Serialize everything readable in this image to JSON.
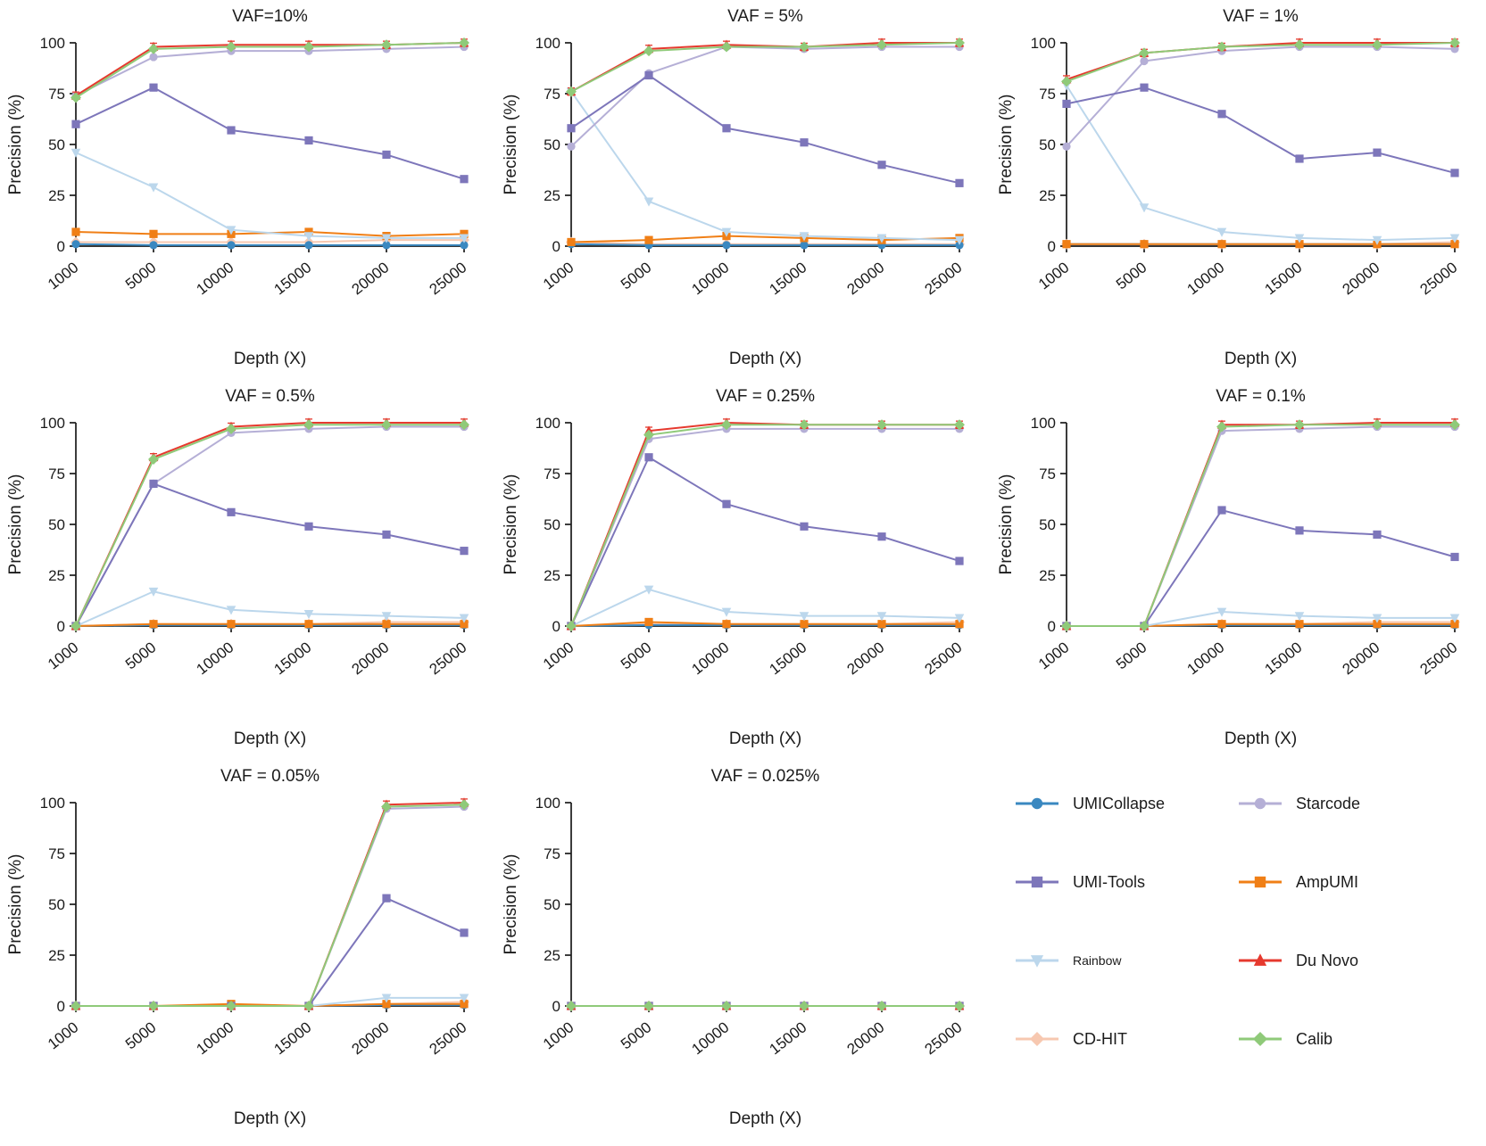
{
  "figure": {
    "xlabel": "Depth (X)",
    "ylabel": "Precision (%)"
  },
  "chart_data": {
    "type": "line",
    "x": [
      1000,
      5000,
      10000,
      15000,
      20000,
      25000
    ],
    "x_tick_labels": [
      "1000",
      "5000",
      "10000",
      "15000",
      "20000",
      "25000"
    ],
    "xlabel": "Depth (X)",
    "ylabel": "Precision (%)",
    "ylim": [
      0,
      100
    ],
    "yticks": [
      0,
      25,
      50,
      75,
      100
    ],
    "grid": false,
    "legend_position": "bottom-right cell, 2 columns",
    "series_meta": [
      {
        "name": "UMICollapse",
        "color": "#3a88c0",
        "marker": "circle"
      },
      {
        "name": "Starcode",
        "color": "#b5afd6",
        "marker": "circle"
      },
      {
        "name": "UMI-Tools",
        "color": "#7d76ba",
        "marker": "square"
      },
      {
        "name": "AmpUMI",
        "color": "#f07f16",
        "marker": "square"
      },
      {
        "name": "Rainbow",
        "color": "#bcd7ec",
        "marker": "triangle-down"
      },
      {
        "name": "Du Novo",
        "color": "#e6392e",
        "marker": "triangle-up"
      },
      {
        "name": "CD-HIT",
        "color": "#f7c8b0",
        "marker": "diamond"
      },
      {
        "name": "Calib",
        "color": "#8fca79",
        "marker": "diamond"
      }
    ],
    "draw_order": [
      "CD-HIT",
      "UMICollapse",
      "AmpUMI",
      "Rainbow",
      "Starcode",
      "UMI-Tools",
      "Du Novo",
      "Calib"
    ],
    "error_bars": {
      "Du Novo": 1.8
    },
    "panels": [
      {
        "title": "VAF=10%",
        "series": {
          "UMICollapse": [
            1,
            0.5,
            0.5,
            0.5,
            0.5,
            0.5
          ],
          "Starcode": [
            74,
            93,
            96,
            96,
            97,
            98
          ],
          "UMI-Tools": [
            60,
            78,
            57,
            52,
            45,
            33
          ],
          "AmpUMI": [
            7,
            6,
            6,
            7,
            5,
            6
          ],
          "Rainbow": [
            46,
            29,
            8,
            5,
            4,
            4
          ],
          "Du Novo": [
            74,
            98,
            99,
            99,
            99,
            100
          ],
          "CD-HIT": [
            2,
            2,
            2,
            2,
            3,
            3
          ],
          "Calib": [
            73,
            97,
            98,
            98,
            99,
            100
          ]
        }
      },
      {
        "title": "VAF = 5%",
        "series": {
          "UMICollapse": [
            1,
            0.5,
            0.5,
            0.5,
            0.5,
            0.5
          ],
          "Starcode": [
            49,
            85,
            98,
            97,
            98,
            98
          ],
          "UMI-Tools": [
            58,
            84,
            58,
            51,
            40,
            31
          ],
          "AmpUMI": [
            2,
            3,
            5,
            4,
            3,
            4
          ],
          "Rainbow": [
            76,
            22,
            7,
            5,
            4,
            3
          ],
          "Du Novo": [
            76,
            97,
            99,
            98,
            100,
            100
          ],
          "CD-HIT": [
            2,
            1,
            1,
            1,
            1,
            1
          ],
          "Calib": [
            76,
            96,
            98,
            98,
            99,
            100
          ]
        }
      },
      {
        "title": "VAF = 1%",
        "series": {
          "UMICollapse": [
            1,
            1,
            1,
            1,
            1,
            1
          ],
          "Starcode": [
            49,
            91,
            96,
            98,
            98,
            97
          ],
          "UMI-Tools": [
            70,
            78,
            65,
            43,
            46,
            36
          ],
          "AmpUMI": [
            1,
            1,
            1,
            1,
            1,
            1
          ],
          "Rainbow": [
            79,
            19,
            7,
            4,
            3,
            4
          ],
          "Du Novo": [
            82,
            95,
            98,
            100,
            100,
            100
          ],
          "CD-HIT": [
            1,
            1,
            1,
            1,
            1,
            2
          ],
          "Calib": [
            81,
            95,
            98,
            99,
            99,
            100
          ]
        }
      },
      {
        "title": "VAF = 0.5%",
        "series": {
          "UMICollapse": [
            0,
            0.5,
            0.5,
            0.5,
            0.5,
            0.5
          ],
          "Starcode": [
            0,
            70,
            95,
            97,
            98,
            98
          ],
          "UMI-Tools": [
            0,
            70,
            56,
            49,
            45,
            37
          ],
          "AmpUMI": [
            0,
            1,
            1,
            1,
            1,
            1
          ],
          "Rainbow": [
            0,
            17,
            8,
            6,
            5,
            4
          ],
          "Du Novo": [
            0,
            83,
            98,
            100,
            100,
            100
          ],
          "CD-HIT": [
            0,
            1,
            1,
            1,
            2,
            2
          ],
          "Calib": [
            0,
            82,
            97,
            99,
            99,
            99
          ]
        }
      },
      {
        "title": "VAF = 0.25%",
        "series": {
          "UMICollapse": [
            0,
            0.5,
            0.5,
            0.5,
            0.5,
            0.5
          ],
          "Starcode": [
            0,
            92,
            97,
            97,
            97,
            97
          ],
          "UMI-Tools": [
            0,
            83,
            60,
            49,
            44,
            32
          ],
          "AmpUMI": [
            0,
            2,
            1,
            1,
            1,
            1
          ],
          "Rainbow": [
            0,
            18,
            7,
            5,
            5,
            4
          ],
          "Du Novo": [
            0,
            96,
            100,
            99,
            99,
            99
          ],
          "CD-HIT": [
            0,
            1,
            1,
            1,
            1,
            2
          ],
          "Calib": [
            0,
            94,
            99,
            99,
            99,
            99
          ]
        }
      },
      {
        "title": "VAF = 0.1%",
        "series": {
          "UMICollapse": [
            0,
            0,
            0.5,
            0.5,
            0.5,
            0.5
          ],
          "Starcode": [
            0,
            0,
            96,
            97,
            98,
            98
          ],
          "UMI-Tools": [
            0,
            0,
            57,
            47,
            45,
            34
          ],
          "AmpUMI": [
            0,
            0,
            1,
            1,
            1,
            1
          ],
          "Rainbow": [
            0,
            0,
            7,
            5,
            4,
            4
          ],
          "Du Novo": [
            0,
            0,
            99,
            99,
            100,
            100
          ],
          "CD-HIT": [
            0,
            0,
            1,
            1,
            2,
            2
          ],
          "Calib": [
            0,
            0,
            98,
            99,
            99,
            99
          ]
        }
      },
      {
        "title": "VAF = 0.05%",
        "series": {
          "UMICollapse": [
            0,
            0,
            0,
            0,
            0.5,
            0.5
          ],
          "Starcode": [
            0,
            0,
            0,
            0,
            97,
            98
          ],
          "UMI-Tools": [
            0,
            0,
            0,
            0,
            53,
            36
          ],
          "AmpUMI": [
            0,
            0,
            1,
            0,
            1,
            1
          ],
          "Rainbow": [
            0,
            0,
            0,
            0,
            4,
            4
          ],
          "Du Novo": [
            0,
            0,
            0,
            0,
            99,
            100
          ],
          "CD-HIT": [
            0,
            0,
            0,
            0,
            1,
            2
          ],
          "Calib": [
            0,
            0,
            0,
            0,
            98,
            99
          ]
        }
      },
      {
        "title": "VAF = 0.025%",
        "series": {
          "UMICollapse": [
            0,
            0,
            0,
            0,
            0,
            0
          ],
          "Starcode": [
            0,
            0,
            0,
            0,
            0,
            0
          ],
          "UMI-Tools": [
            0,
            0,
            0,
            0,
            0,
            0
          ],
          "AmpUMI": [
            0,
            0,
            0,
            0,
            0,
            0
          ],
          "Rainbow": [
            0,
            0,
            0,
            0,
            0,
            0
          ],
          "Du Novo": [
            0,
            0,
            0,
            0,
            0,
            0
          ],
          "CD-HIT": [
            0,
            0,
            0,
            0,
            0,
            0
          ],
          "Calib": [
            0,
            0,
            0,
            0,
            0,
            0
          ]
        }
      }
    ]
  }
}
